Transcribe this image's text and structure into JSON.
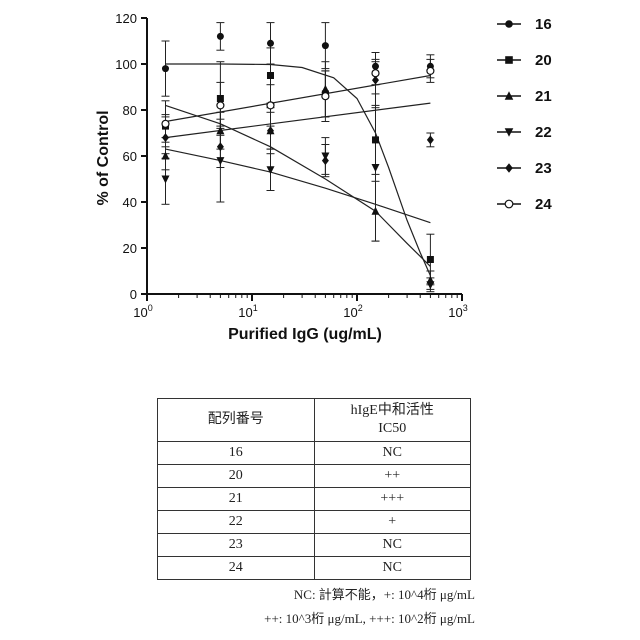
{
  "chart_data": {
    "type": "scatter",
    "xlabel": "Purified IgG (ug/mL)",
    "ylabel": "% of Control",
    "xscale": "log",
    "xlim": [
      1,
      1000
    ],
    "ylim": [
      0,
      120
    ],
    "x_ticks": [
      1,
      10,
      100,
      1000
    ],
    "x_tick_labels": [
      {
        "base": "10",
        "exp": "0"
      },
      {
        "base": "10",
        "exp": "1"
      },
      {
        "base": "10",
        "exp": "2"
      },
      {
        "base": "10",
        "exp": "3"
      }
    ],
    "y_ticks": [
      0,
      20,
      40,
      60,
      80,
      100,
      120
    ],
    "legend_position": "right",
    "grid": false,
    "x": [
      1.5,
      5,
      15,
      50,
      150,
      500
    ],
    "series": [
      {
        "name": "16",
        "marker": "circle",
        "values": [
          98,
          112,
          109,
          108,
          99,
          99
        ],
        "errors": [
          12,
          6,
          9,
          10,
          3,
          5
        ]
      },
      {
        "name": "20",
        "marker": "square",
        "values": [
          73,
          85,
          95,
          87,
          67,
          15
        ],
        "errors": [
          5,
          16,
          12,
          10,
          15,
          11
        ]
      },
      {
        "name": "21",
        "marker": "triangle-up",
        "values": [
          60,
          71,
          71,
          89,
          36,
          6
        ],
        "errors": [
          6,
          8,
          10,
          12,
          13,
          4
        ]
      },
      {
        "name": "22",
        "marker": "triangle-down",
        "values": [
          50,
          58,
          54,
          60,
          55,
          4
        ],
        "errors": [
          11,
          18,
          9,
          8,
          32,
          3
        ]
      },
      {
        "name": "23",
        "marker": "diamond",
        "values": [
          68,
          64,
          71,
          58,
          93,
          67
        ],
        "errors": [
          9,
          9,
          8,
          7,
          12,
          3
        ]
      },
      {
        "name": "24",
        "marker": "circle-open",
        "values": [
          74,
          82,
          82,
          86,
          96,
          97
        ],
        "errors": [
          10,
          10,
          9,
          11,
          5,
          5
        ]
      }
    ],
    "fit_curves": [
      {
        "name": "16",
        "points": [
          [
            1.5,
            100
          ],
          [
            5,
            100
          ],
          [
            15,
            99.8
          ],
          [
            30,
            98.5
          ],
          [
            60,
            94
          ],
          [
            100,
            85
          ],
          [
            150,
            70
          ],
          [
            200,
            55
          ],
          [
            300,
            32
          ],
          [
            400,
            18
          ],
          [
            500,
            8
          ]
        ]
      },
      {
        "name": "20",
        "points": [
          [
            1.5,
            75
          ],
          [
            500,
            95
          ]
        ]
      },
      {
        "name": "21",
        "points": [
          [
            1.5,
            63
          ],
          [
            5,
            58
          ],
          [
            15,
            53
          ],
          [
            50,
            46
          ],
          [
            150,
            39
          ],
          [
            500,
            31
          ]
        ]
      },
      {
        "name": "22",
        "points": [
          [
            1.5,
            82
          ],
          [
            5,
            74
          ],
          [
            15,
            64
          ],
          [
            50,
            50
          ],
          [
            150,
            36
          ],
          [
            300,
            22
          ],
          [
            500,
            12
          ]
        ]
      },
      {
        "name": "24",
        "points": [
          [
            1.5,
            68
          ],
          [
            500,
            83
          ]
        ]
      }
    ]
  },
  "table": {
    "headers": {
      "col1": "配列番号",
      "col2_line1": "hIgE中和活性",
      "col2_line2": "IC50"
    },
    "rows": [
      {
        "id": "16",
        "value": "NC"
      },
      {
        "id": "20",
        "value": "++"
      },
      {
        "id": "21",
        "value": "+++"
      },
      {
        "id": "22",
        "value": "+"
      },
      {
        "id": "23",
        "value": "NC"
      },
      {
        "id": "24",
        "value": "NC"
      }
    ]
  },
  "notes": {
    "line1": "NC: 計算不能，+: 10^4桁 μg/mL",
    "line2": "++: 10^3桁 μg/mL, +++: 10^2桁 μg/mL"
  }
}
